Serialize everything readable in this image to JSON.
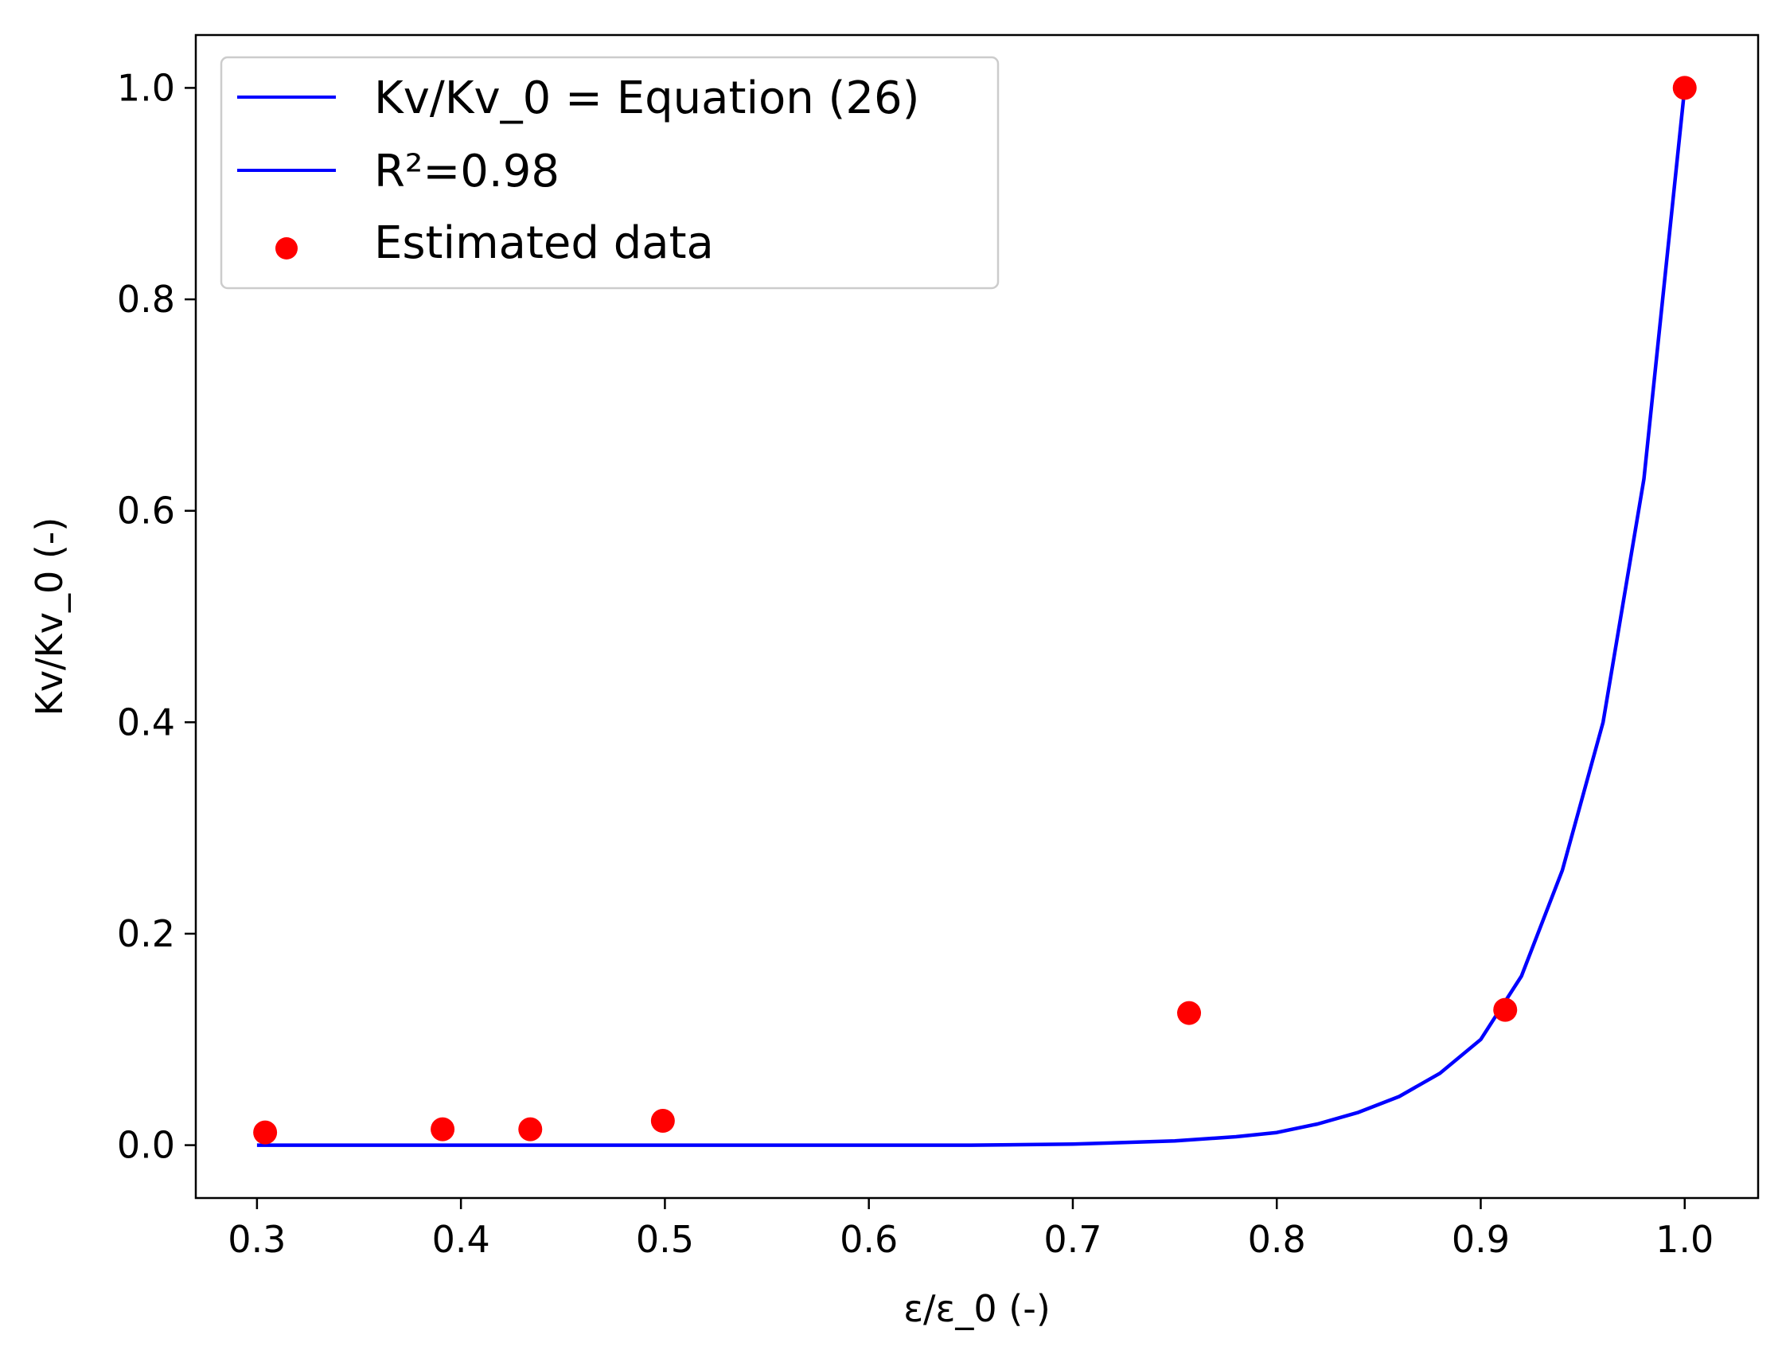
{
  "chart_data": {
    "type": "scatter",
    "xlabel": "ε/ε_0 (-)",
    "ylabel": "Kv/Kv_0 (-)",
    "xlim": [
      0.27,
      1.036
    ],
    "ylim": [
      -0.05,
      1.05
    ],
    "x_ticks": [
      0.3,
      0.4,
      0.5,
      0.6,
      0.7,
      0.8,
      0.9,
      1.0
    ],
    "x_tick_labels": [
      "0.3",
      "0.4",
      "0.5",
      "0.6",
      "0.7",
      "0.8",
      "0.9",
      "1.0"
    ],
    "y_ticks": [
      0.0,
      0.2,
      0.4,
      0.6,
      0.8,
      1.0
    ],
    "y_tick_labels": [
      "0.0",
      "0.2",
      "0.4",
      "0.6",
      "0.8",
      "1.0"
    ],
    "grid": false,
    "legend_position": "top-left",
    "series": [
      {
        "name": "Kv/Kv_0 = Equation (26)",
        "kind": "line",
        "color": "#0000ff",
        "x": [
          0.3,
          0.4,
          0.5,
          0.6,
          0.65,
          0.7,
          0.75,
          0.78,
          0.8,
          0.82,
          0.84,
          0.86,
          0.88,
          0.9,
          0.92,
          0.94,
          0.96,
          0.98,
          1.0
        ],
        "y": [
          0.0,
          0.0,
          0.0,
          0.0,
          0.0,
          0.001,
          0.004,
          0.008,
          0.012,
          0.02,
          0.031,
          0.046,
          0.068,
          0.1,
          0.16,
          0.26,
          0.4,
          0.63,
          1.0
        ]
      },
      {
        "name": "R²=0.98",
        "kind": "line",
        "color": "#0000ff",
        "x": [],
        "y": []
      },
      {
        "name": "Estimated data",
        "kind": "scatter",
        "color": "#ff0000",
        "x": [
          0.304,
          0.391,
          0.434,
          0.499,
          0.757,
          0.912,
          1.0
        ],
        "y": [
          0.012,
          0.015,
          0.015,
          0.023,
          0.125,
          0.128,
          1.0
        ]
      }
    ]
  }
}
